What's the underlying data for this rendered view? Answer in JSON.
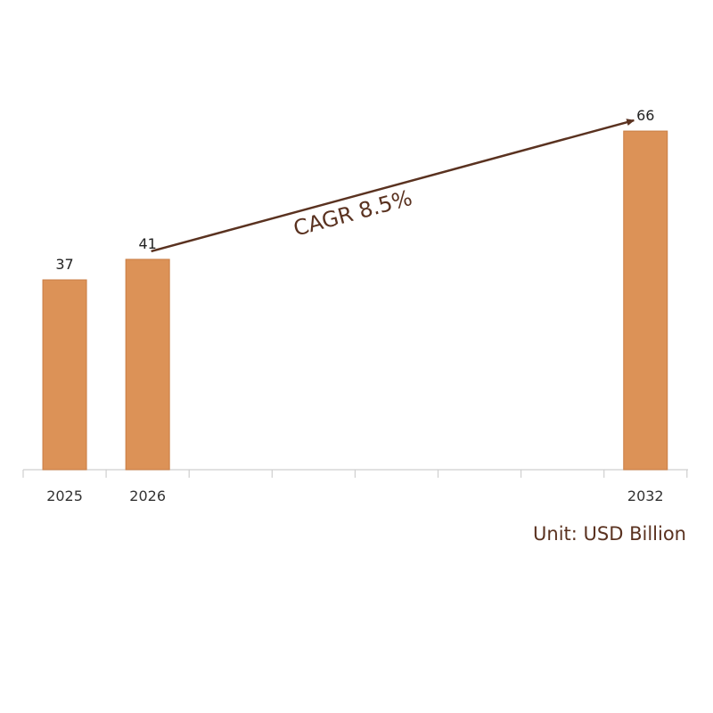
{
  "chart_data": {
    "type": "bar",
    "categories": [
      "2025",
      "2026",
      "",
      "",
      "",
      "",
      "",
      "2032"
    ],
    "values": [
      37,
      41,
      null,
      null,
      null,
      null,
      null,
      66
    ],
    "value_labels": [
      "37",
      "41",
      "",
      "",
      "",
      "",
      "",
      "66"
    ],
    "ylim": [
      0,
      100
    ],
    "grid": false,
    "legend": "none",
    "annotation": {
      "text": "CAGR  8.5%",
      "from_category": "2026",
      "to_category": "2032"
    },
    "unit_note": "Unit: USD Billion",
    "colors": {
      "bar": "#DC9257",
      "bar_edge": "#C97E45",
      "axis": "#CFCFCF",
      "annotation": "#5A3220",
      "unit_text": "#5A3220"
    }
  }
}
